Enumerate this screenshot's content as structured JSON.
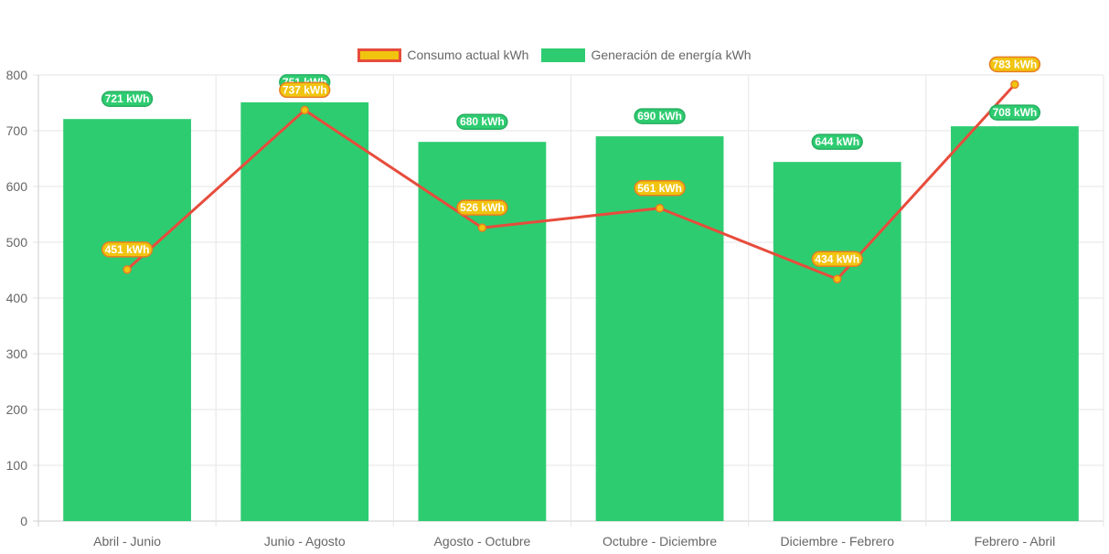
{
  "chart_data": {
    "type": "bar",
    "categories": [
      "Abril - Junio",
      "Junio - Agosto",
      "Agosto - Octubre",
      "Octubre - Diciembre",
      "Diciembre - Febrero",
      "Febrero - Abril"
    ],
    "series": [
      {
        "name": "Consumo actual kWh",
        "type": "line",
        "values": [
          451,
          737,
          526,
          561,
          434,
          783
        ],
        "labels": [
          "451 kWh",
          "737 kWh",
          "526 kWh",
          "561 kWh",
          "434 kWh",
          "783 kWh"
        ],
        "color": "#e74c3c",
        "point_color": "#f1c40f"
      },
      {
        "name": "Generación de energía kWh",
        "type": "bar",
        "values": [
          721,
          751,
          680,
          690,
          644,
          708
        ],
        "labels": [
          "721 kWh",
          "751 kWh",
          "680 kWh",
          "690 kWh",
          "644 kWh",
          "708 kWh"
        ],
        "color": "#2ecc71"
      }
    ],
    "ylim": [
      0,
      800
    ],
    "yticks": [
      "0",
      "100",
      "200",
      "300",
      "400",
      "500",
      "600",
      "700",
      "800"
    ],
    "grid": true,
    "legend_position": "top-center"
  }
}
